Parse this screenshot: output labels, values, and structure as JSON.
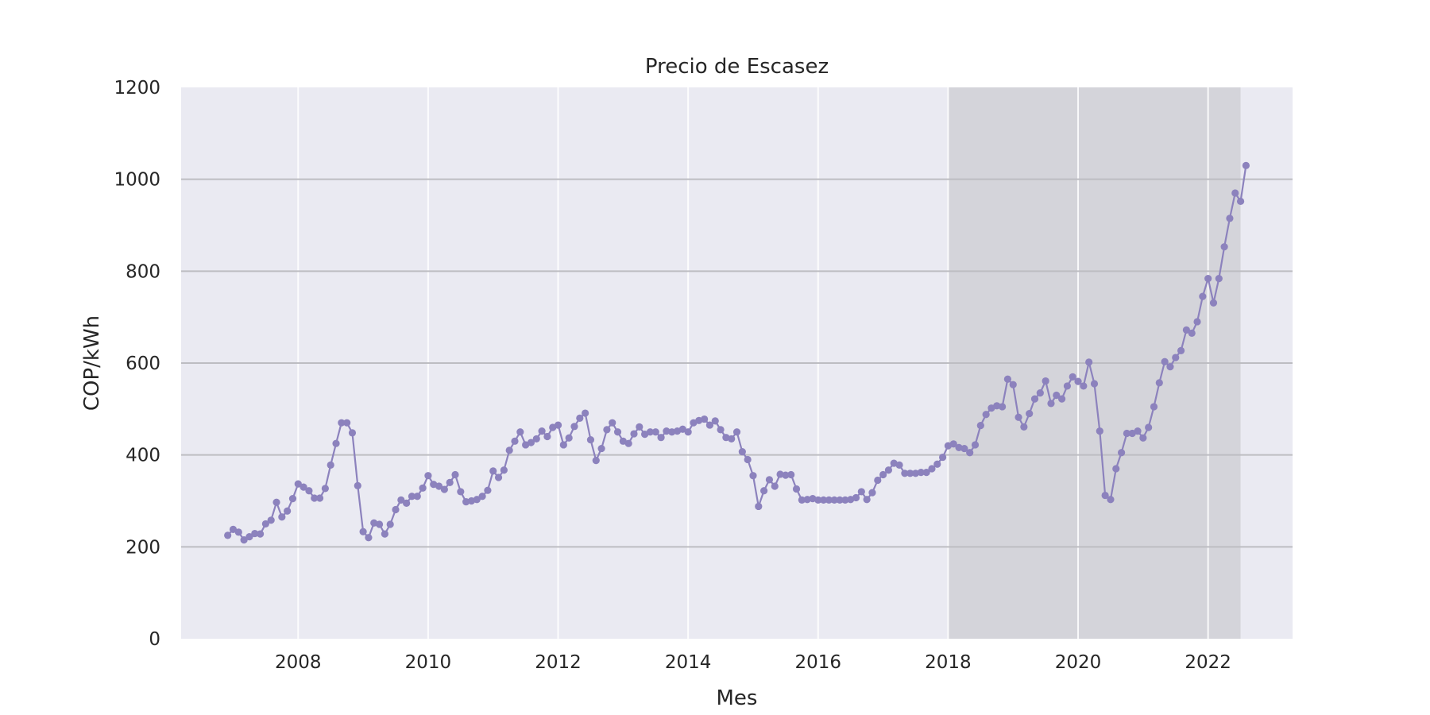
{
  "chart_data": {
    "type": "line",
    "title": "Precio de Escasez",
    "xlabel": "Mes",
    "ylabel": "COP/kWh",
    "xlim": [
      2006.2,
      2023.3
    ],
    "ylim": [
      0,
      1200
    ],
    "x_ticks": [
      2008,
      2010,
      2012,
      2014,
      2016,
      2018,
      2020,
      2022
    ],
    "y_ticks": [
      0,
      200,
      400,
      600,
      800,
      1000,
      1200
    ],
    "grid": true,
    "legend": "none",
    "shaded_region": {
      "x_start": 2018.0,
      "x_end": 2022.5
    },
    "colors": {
      "line": "#8c82bd",
      "plot_bg": "#eaeaf2",
      "shade": "#d4d4da",
      "grid_vertical": "#ffffff",
      "grid_horizontal": "#bdbdc2"
    },
    "series": [
      {
        "x_start": 2006.917,
        "x_step": 0.0833333,
        "values": [
          225,
          238,
          232,
          215,
          222,
          229,
          228,
          250,
          258,
          297,
          265,
          278,
          305,
          337,
          330,
          322,
          306,
          306,
          327,
          378,
          425,
          470,
          470,
          448,
          333,
          233,
          220,
          252,
          249,
          228,
          249,
          281,
          302,
          295,
          310,
          310,
          328,
          355,
          336,
          332,
          325,
          340,
          357,
          320,
          298,
          300,
          303,
          310,
          323,
          365,
          351,
          367,
          410,
          430,
          450,
          422,
          427,
          435,
          452,
          440,
          460,
          465,
          422,
          437,
          462,
          480,
          491,
          433,
          388,
          414,
          455,
          470,
          450,
          430,
          425,
          446,
          461,
          445,
          450,
          450,
          438,
          452,
          450,
          452,
          456,
          450,
          470,
          475,
          478,
          465,
          474,
          455,
          438,
          435,
          450,
          407,
          390,
          355,
          288,
          322,
          346,
          332,
          358,
          356,
          357,
          326,
          302,
          303,
          305,
          302,
          302,
          302,
          302,
          302,
          302,
          303,
          307,
          320,
          303,
          318,
          345,
          357,
          367,
          382,
          378,
          360,
          360,
          360,
          362,
          362,
          370,
          380,
          395,
          420,
          424,
          416,
          414,
          405,
          422,
          464,
          488,
          502,
          507,
          505,
          565,
          553,
          482,
          461,
          490,
          522,
          535,
          561,
          512,
          530,
          522,
          550,
          570,
          560,
          550,
          602,
          555,
          452,
          312,
          303,
          370,
          405,
          447,
          447,
          452,
          437,
          460,
          505,
          557,
          603,
          592,
          612,
          627,
          672,
          665,
          690,
          745,
          784,
          731,
          784,
          853,
          915,
          970,
          952,
          1030
        ]
      }
    ]
  }
}
